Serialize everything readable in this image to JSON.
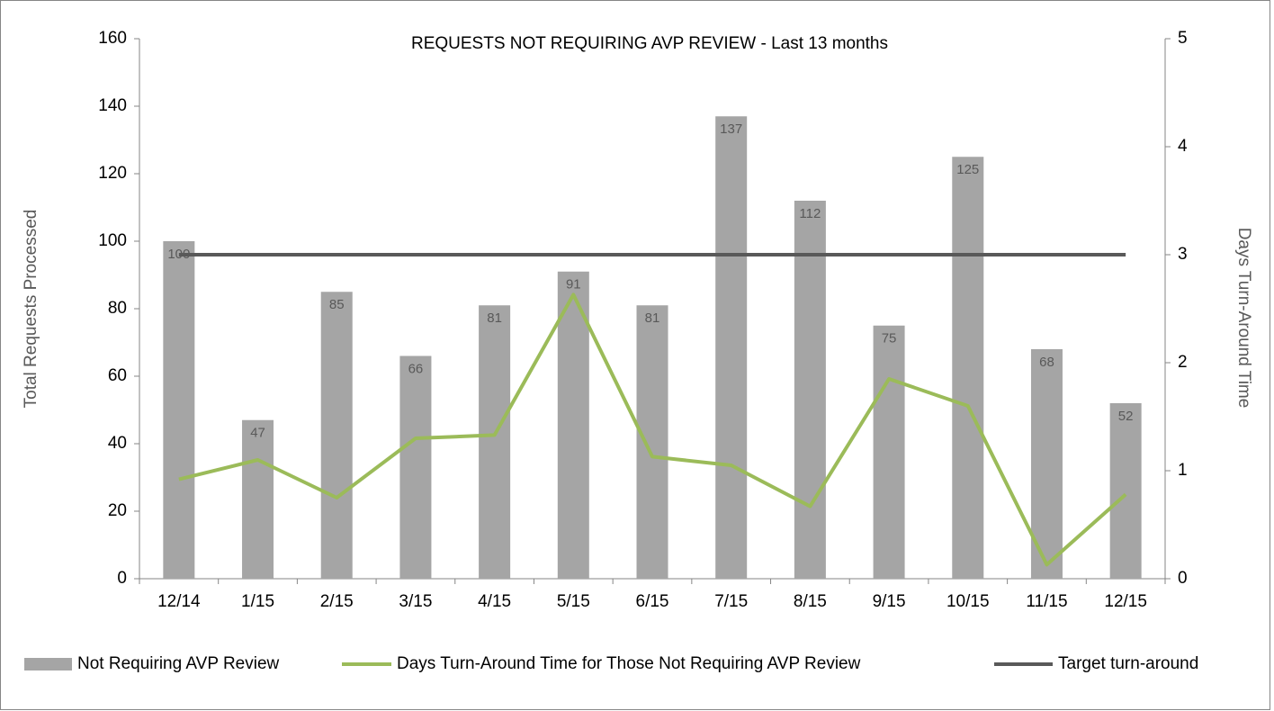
{
  "chart_data": {
    "type": "bar",
    "title": "REQUESTS NOT REQUIRING AVP REVIEW - Last 13 months",
    "y_label": "Total Requests  Processed",
    "y2_label": "Days Turn-Around Time",
    "categories": [
      "12/14",
      "1/15",
      "2/15",
      "3/15",
      "4/15",
      "5/15",
      "6/15",
      "7/15",
      "8/15",
      "9/15",
      "10/15",
      "11/15",
      "12/15"
    ],
    "series": [
      {
        "name": "Not Requiring AVP Review",
        "type": "bar",
        "color": "#a5a5a5",
        "values": [
          100,
          47,
          85,
          66,
          81,
          91,
          81,
          137,
          112,
          75,
          125,
          68,
          52
        ]
      },
      {
        "name": "Days Turn-Around Time for Those Not Requiring AVP Review",
        "type": "line",
        "axis": "y2",
        "color": "#9bbb59",
        "values": [
          0.92,
          1.1,
          0.75,
          1.3,
          1.33,
          2.63,
          1.13,
          1.05,
          0.67,
          1.85,
          1.6,
          0.13,
          0.78
        ]
      },
      {
        "name": "Target turn-around",
        "type": "line",
        "axis": "y2",
        "color": "#595959",
        "values": [
          3,
          3,
          3,
          3,
          3,
          3,
          3,
          3,
          3,
          3,
          3,
          3,
          3
        ]
      }
    ],
    "ylim": [
      0,
      160
    ],
    "yticks": [
      0,
      20,
      40,
      60,
      80,
      100,
      120,
      140,
      160
    ],
    "y2lim": [
      0,
      5
    ],
    "y2ticks": [
      0,
      1,
      2,
      3,
      4,
      5
    ],
    "legend": "bottom",
    "data_labels": true
  }
}
